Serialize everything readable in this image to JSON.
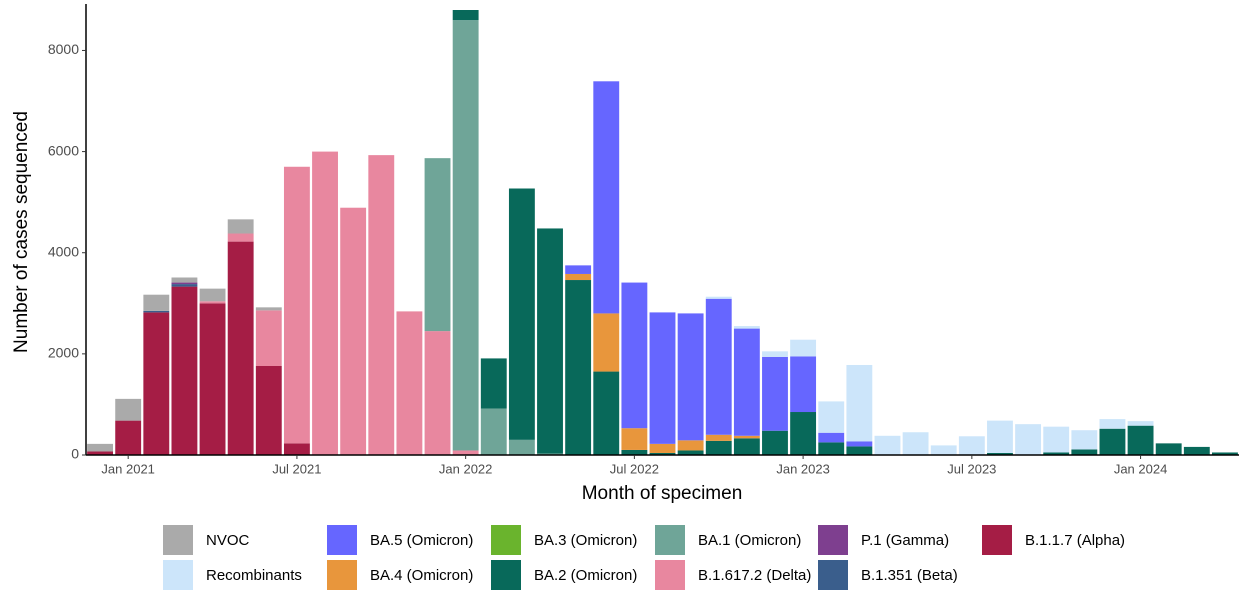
{
  "chart_data": {
    "type": "stacked-bar",
    "xlabel": "Month of specimen",
    "ylabel": "Number of cases sequenced",
    "x": [
      "2020-12",
      "2021-01",
      "2021-02",
      "2021-03",
      "2021-04",
      "2021-05",
      "2021-06",
      "2021-07",
      "2021-08",
      "2021-09",
      "2021-10",
      "2021-11",
      "2021-12",
      "2022-01",
      "2022-02",
      "2022-03",
      "2022-04",
      "2022-05",
      "2022-06",
      "2022-07",
      "2022-08",
      "2022-09",
      "2022-10",
      "2022-11",
      "2022-12",
      "2023-01",
      "2023-02",
      "2023-03",
      "2023-04",
      "2023-05",
      "2023-06",
      "2023-07",
      "2023-08",
      "2023-09",
      "2023-10",
      "2023-11",
      "2023-12",
      "2024-01",
      "2024-02",
      "2024-03",
      "2024-04"
    ],
    "xlim": [
      "2020-12",
      "2024-04"
    ],
    "xticks": [
      {
        "value": "2021-01",
        "label": "Jan 2021"
      },
      {
        "value": "2021-07",
        "label": "Jul 2021"
      },
      {
        "value": "2022-01",
        "label": "Jan 2022"
      },
      {
        "value": "2022-07",
        "label": "Jul 2022"
      },
      {
        "value": "2023-01",
        "label": "Jan 2023"
      },
      {
        "value": "2023-07",
        "label": "Jul 2023"
      },
      {
        "value": "2024-01",
        "label": "Jan 2024"
      }
    ],
    "ylim": [
      0,
      8800
    ],
    "yticks": [
      0,
      2000,
      4000,
      6000,
      8000
    ],
    "grid": false,
    "series": [
      {
        "name": "NVOC",
        "color": "#aaaaaa",
        "values": [
          150,
          430,
          320,
          100,
          250,
          280,
          60,
          0,
          0,
          0,
          0,
          0,
          0,
          0,
          0,
          0,
          0,
          0,
          0,
          0,
          0,
          0,
          0,
          0,
          0,
          0,
          0,
          0,
          0,
          0,
          0,
          0,
          0,
          0,
          0,
          0,
          0,
          0,
          0,
          0,
          0
        ]
      },
      {
        "name": "Recombinants",
        "color": "#cce5fa",
        "values": [
          0,
          0,
          0,
          0,
          0,
          0,
          0,
          0,
          0,
          0,
          0,
          0,
          0,
          0,
          0,
          0,
          0,
          0,
          0,
          0,
          0,
          0,
          40,
          50,
          110,
          330,
          620,
          1510,
          380,
          450,
          190,
          370,
          640,
          610,
          510,
          380,
          190,
          90,
          0,
          0,
          0
        ]
      },
      {
        "name": "BA.5 (Omicron)",
        "color": "#6666ff",
        "values": [
          0,
          0,
          0,
          0,
          0,
          0,
          0,
          0,
          0,
          0,
          0,
          0,
          0,
          0,
          0,
          0,
          0,
          170,
          4590,
          2880,
          2600,
          2510,
          2690,
          2120,
          1460,
          1100,
          190,
          100,
          0,
          0,
          0,
          0,
          0,
          0,
          0,
          0,
          0,
          0,
          0,
          0,
          0
        ]
      },
      {
        "name": "BA.4 (Omicron)",
        "color": "#e8963c",
        "values": [
          0,
          0,
          0,
          0,
          0,
          0,
          0,
          0,
          0,
          0,
          0,
          0,
          0,
          0,
          0,
          0,
          0,
          120,
          1150,
          430,
          180,
          200,
          120,
          50,
          0,
          0,
          0,
          0,
          0,
          0,
          0,
          0,
          0,
          0,
          0,
          0,
          0,
          0,
          0,
          0,
          0
        ]
      },
      {
        "name": "BA.3 (Omicron)",
        "color": "#6ab42d",
        "values": [
          0,
          0,
          0,
          0,
          0,
          0,
          0,
          0,
          0,
          0,
          0,
          0,
          0,
          0,
          0,
          0,
          0,
          0,
          0,
          0,
          0,
          0,
          0,
          0,
          0,
          0,
          0,
          0,
          0,
          0,
          0,
          0,
          0,
          0,
          0,
          0,
          0,
          0,
          0,
          0,
          0
        ]
      },
      {
        "name": "BA.2 (Omicron)",
        "color": "#08695a",
        "values": [
          0,
          0,
          0,
          0,
          0,
          0,
          0,
          0,
          0,
          0,
          0,
          0,
          0,
          200,
          990,
          4970,
          4450,
          3460,
          1650,
          100,
          40,
          90,
          280,
          330,
          480,
          850,
          250,
          170,
          0,
          0,
          0,
          0,
          40,
          0,
          50,
          110,
          520,
          580,
          230,
          160,
          50
        ]
      },
      {
        "name": "BA.1 (Omicron)",
        "color": "#6fa598",
        "values": [
          0,
          0,
          0,
          0,
          0,
          0,
          0,
          0,
          0,
          0,
          0,
          0,
          3420,
          8510,
          920,
          300,
          30,
          0,
          0,
          0,
          0,
          0,
          0,
          0,
          0,
          0,
          0,
          0,
          0,
          0,
          0,
          0,
          0,
          0,
          0,
          0,
          0,
          0,
          0,
          0,
          0
        ]
      },
      {
        "name": "B.1.617.2 (Delta)",
        "color": "#e8879f",
        "values": [
          0,
          0,
          0,
          0,
          40,
          160,
          1100,
          5470,
          6000,
          4890,
          5930,
          2840,
          2450,
          90,
          0,
          0,
          0,
          0,
          0,
          0,
          0,
          0,
          0,
          0,
          0,
          0,
          0,
          0,
          0,
          0,
          0,
          0,
          0,
          0,
          0,
          0,
          0,
          0,
          0,
          0,
          0
        ]
      },
      {
        "name": "P.1 (Gamma)",
        "color": "#7e3f8f",
        "values": [
          0,
          0,
          0,
          30,
          0,
          0,
          0,
          0,
          0,
          0,
          0,
          0,
          0,
          0,
          0,
          0,
          0,
          0,
          0,
          0,
          0,
          0,
          0,
          0,
          0,
          0,
          0,
          0,
          0,
          0,
          0,
          0,
          0,
          0,
          0,
          0,
          0,
          0,
          0,
          0,
          0
        ]
      },
      {
        "name": "B.1.351 (Beta)",
        "color": "#3a5e8c",
        "values": [
          0,
          0,
          30,
          50,
          0,
          0,
          0,
          0,
          0,
          0,
          0,
          0,
          0,
          0,
          0,
          0,
          0,
          0,
          0,
          0,
          0,
          0,
          0,
          0,
          0,
          0,
          0,
          0,
          0,
          0,
          0,
          0,
          0,
          0,
          0,
          0,
          0,
          0,
          0,
          0,
          0
        ]
      },
      {
        "name": "B.1.1.7 (Alpha)",
        "color": "#a51d45",
        "values": [
          70,
          680,
          2820,
          3330,
          3000,
          4220,
          1760,
          230,
          0,
          0,
          0,
          0,
          0,
          0,
          0,
          0,
          0,
          0,
          0,
          0,
          0,
          0,
          0,
          0,
          0,
          0,
          0,
          0,
          0,
          0,
          0,
          0,
          0,
          0,
          0,
          0,
          0,
          0,
          0,
          0,
          0
        ]
      }
    ]
  }
}
